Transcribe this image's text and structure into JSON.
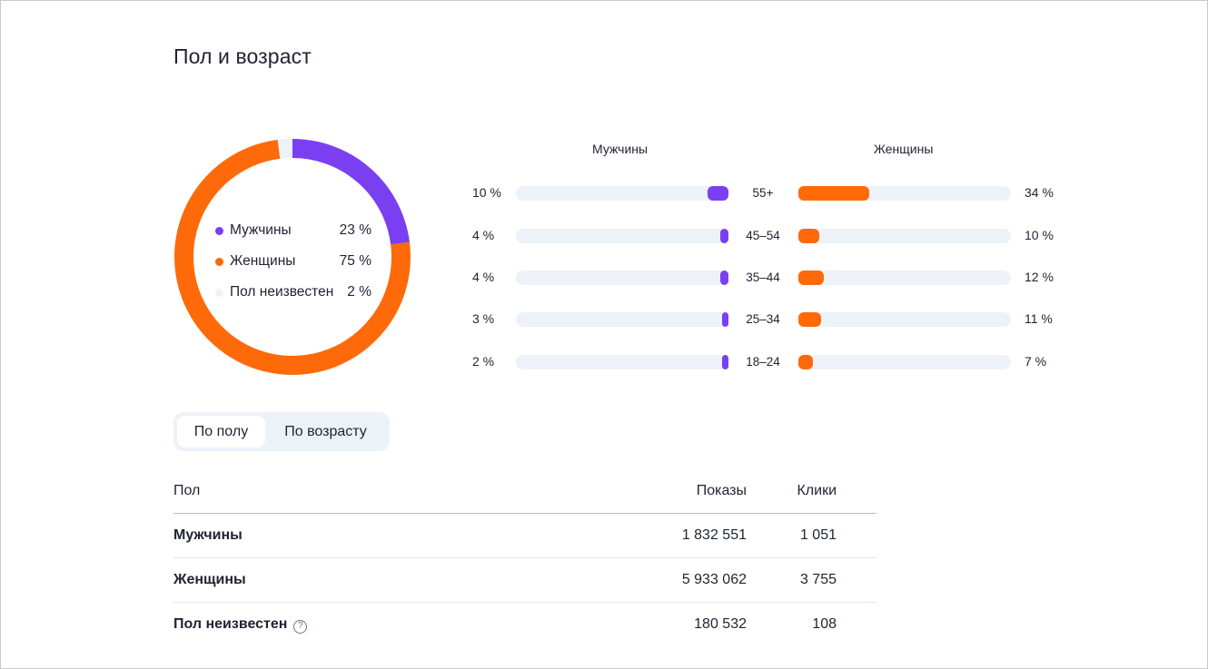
{
  "page": {
    "title": "Пол и возраст"
  },
  "colors": {
    "men": "#7b3ff2",
    "women": "#fe6a0a",
    "unknown": "#edf2f9",
    "track": "#edf2f9"
  },
  "gender_chart": {
    "type": "pie",
    "legend": [
      {
        "label": "Мужчины",
        "value_text": "23 %",
        "value": 23,
        "color": "#7b3ff2"
      },
      {
        "label": "Женщины",
        "value_text": "75 %",
        "value": 75,
        "color": "#fe6a0a"
      },
      {
        "label": "Пол неизвестен",
        "value_text": "2 %",
        "value": 2,
        "color": "#edf2f9"
      }
    ]
  },
  "age_chart": {
    "men_header": "Мужчины",
    "women_header": "Женщины",
    "rows": [
      {
        "age": "55+",
        "men_text": "10 %",
        "men": 10,
        "women_text": "34 %",
        "women": 34
      },
      {
        "age": "45–54",
        "men_text": "4 %",
        "men": 4,
        "women_text": "10 %",
        "women": 10
      },
      {
        "age": "35–44",
        "men_text": "4 %",
        "men": 4,
        "women_text": "12 %",
        "women": 12
      },
      {
        "age": "25–34",
        "men_text": "3 %",
        "men": 3,
        "women_text": "11 %",
        "women": 11
      },
      {
        "age": "18–24",
        "men_text": "2 %",
        "men": 2,
        "women_text": "7 %",
        "women": 7
      }
    ]
  },
  "chart_data": [
    {
      "type": "pie",
      "categories": [
        "Мужчины",
        "Женщины",
        "Пол неизвестен"
      ],
      "values": [
        23,
        75,
        2
      ]
    },
    {
      "type": "bar",
      "categories": [
        "55+",
        "45–54",
        "35–44",
        "25–34",
        "18–24"
      ],
      "series": [
        {
          "name": "Мужчины",
          "values": [
            10,
            4,
            4,
            3,
            2
          ]
        },
        {
          "name": "Женщины",
          "values": [
            34,
            10,
            12,
            11,
            7
          ]
        }
      ]
    }
  ],
  "tabs": {
    "by_gender": "По полу",
    "by_age": "По возрасту",
    "active": "by_gender"
  },
  "table": {
    "headers": {
      "name": "Пол",
      "shows": "Показы",
      "clicks": "Клики"
    },
    "rows": [
      {
        "name": "Мужчины",
        "shows": "1 832 551",
        "clicks": "1 051"
      },
      {
        "name": "Женщины",
        "shows": "5 933 062",
        "clicks": "3 755"
      },
      {
        "name": "Пол неизвестен",
        "shows": "180 532",
        "clicks": "108",
        "help_icon": "question-circle-icon"
      }
    ]
  }
}
